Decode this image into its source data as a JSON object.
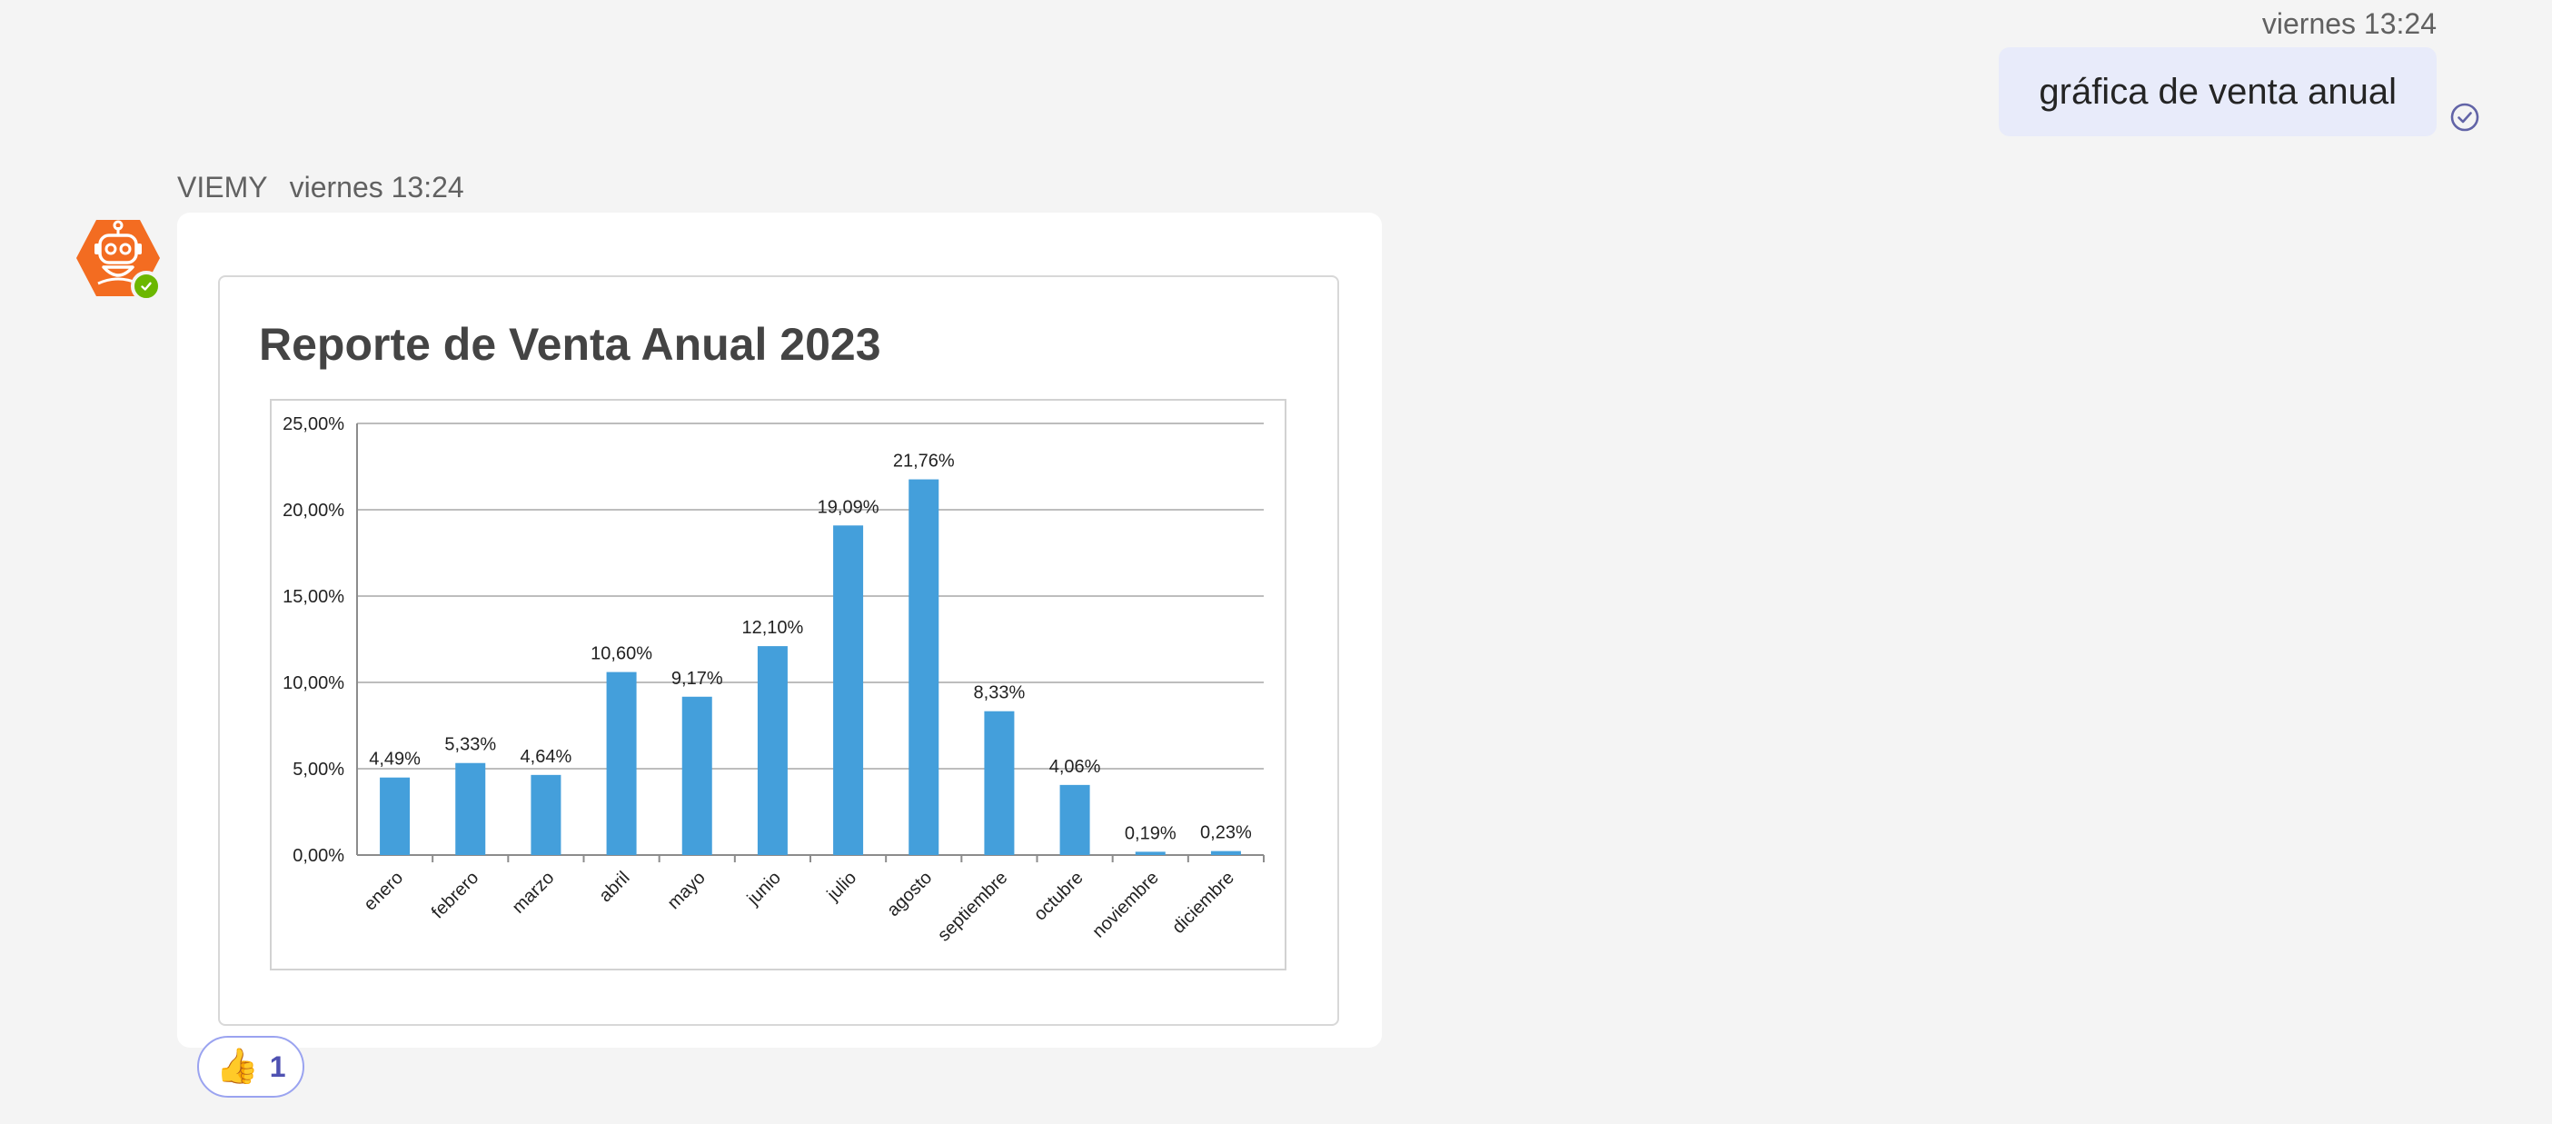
{
  "outgoing": {
    "timestamp": "viernes 13:24",
    "message": "gráfica de venta anual"
  },
  "incoming": {
    "sender": "VIEMY",
    "timestamp": "viernes 13:24"
  },
  "reaction": {
    "emoji": "👍",
    "count": "1"
  },
  "colors": {
    "bar": "#449fdb",
    "avatar": "#f36c21",
    "presence": "#6bb700",
    "accent": "#6264a7"
  },
  "chart_data": {
    "type": "bar",
    "title": "Reporte de Venta Anual 2023",
    "categories": [
      "enero",
      "febrero",
      "marzo",
      "abril",
      "mayo",
      "junio",
      "julio",
      "agosto",
      "septiembre",
      "octubre",
      "noviembre",
      "diciembre"
    ],
    "values": [
      4.49,
      5.33,
      4.64,
      10.6,
      9.17,
      12.1,
      19.09,
      21.76,
      8.33,
      4.06,
      0.19,
      0.23
    ],
    "data_labels": [
      "4,49%",
      "5,33%",
      "4,64%",
      "10,60%",
      "9,17%",
      "12,10%",
      "19,09%",
      "21,76%",
      "8,33%",
      "4,06%",
      "0,19%",
      "0,23%"
    ],
    "y_ticks": [
      0,
      5,
      10,
      15,
      20,
      25
    ],
    "y_tick_labels": [
      "0,00%",
      "5,00%",
      "10,00%",
      "15,00%",
      "20,00%",
      "25,00%"
    ],
    "ylim": [
      0,
      25
    ],
    "xlabel": "",
    "ylabel": "",
    "grid": true,
    "legend": "none"
  }
}
